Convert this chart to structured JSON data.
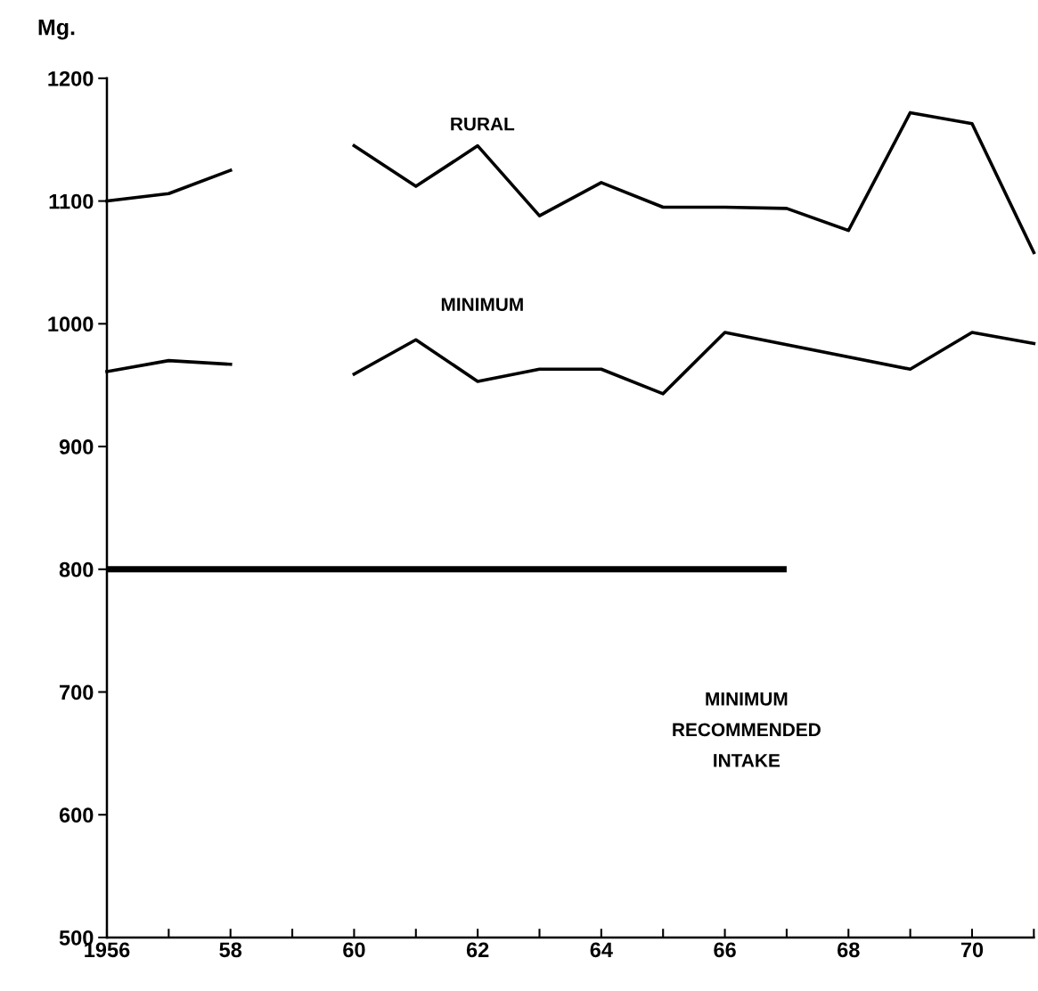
{
  "chart_data": {
    "type": "line",
    "ylabel": "Mg.",
    "series": [
      {
        "name": "RURAL",
        "color": "#000000",
        "x": [
          1956,
          1957,
          1958,
          1959,
          1960,
          1961,
          1962,
          1963,
          1964,
          1965,
          1966,
          1967,
          1968,
          1969,
          1970,
          1971
        ],
        "values": [
          1100,
          1106,
          1125,
          null,
          1145,
          1112,
          1145,
          1088,
          1115,
          1095,
          1095,
          1094,
          1076,
          1172,
          1163,
          1058
        ]
      },
      {
        "name": "MINIMUM",
        "color": "#000000",
        "x": [
          1956,
          1957,
          1958,
          1959,
          1960,
          1961,
          1962,
          1963,
          1964,
          1965,
          1966,
          1969,
          1970,
          1971
        ],
        "values": [
          961,
          970,
          967,
          null,
          959,
          987,
          953,
          963,
          963,
          943,
          993,
          963,
          993,
          984
        ]
      }
    ],
    "ref_lines": [
      {
        "axis": "y",
        "value": 800,
        "color": "#000000"
      }
    ],
    "annotations": [
      "MINIMUM\nRECOMMENDED\nINTAKE"
    ],
    "xlim": [
      1956,
      1971
    ],
    "ylim": [
      500,
      1200
    ],
    "xticks": [
      {
        "value": 1956,
        "label": "1956"
      },
      {
        "value": 1957,
        "label": null
      },
      {
        "value": 1958,
        "label": "58"
      },
      {
        "value": 1959,
        "label": null
      },
      {
        "value": 1960,
        "label": "60"
      },
      {
        "value": 1961,
        "label": null
      },
      {
        "value": 1962,
        "label": "62"
      },
      {
        "value": 1963,
        "label": null
      },
      {
        "value": 1964,
        "label": "64"
      },
      {
        "value": 1965,
        "label": null
      },
      {
        "value": 1966,
        "label": "66"
      },
      {
        "value": 1967,
        "label": null
      },
      {
        "value": 1968,
        "label": "68"
      },
      {
        "value": 1969,
        "label": null
      },
      {
        "value": 1970,
        "label": "70"
      },
      {
        "value": 1971,
        "label": null
      }
    ],
    "yticks": [
      500,
      600,
      700,
      800,
      900,
      1000,
      1100,
      1200
    ],
    "grid": false,
    "legend": false,
    "marker": "none",
    "line_style": "solid"
  }
}
